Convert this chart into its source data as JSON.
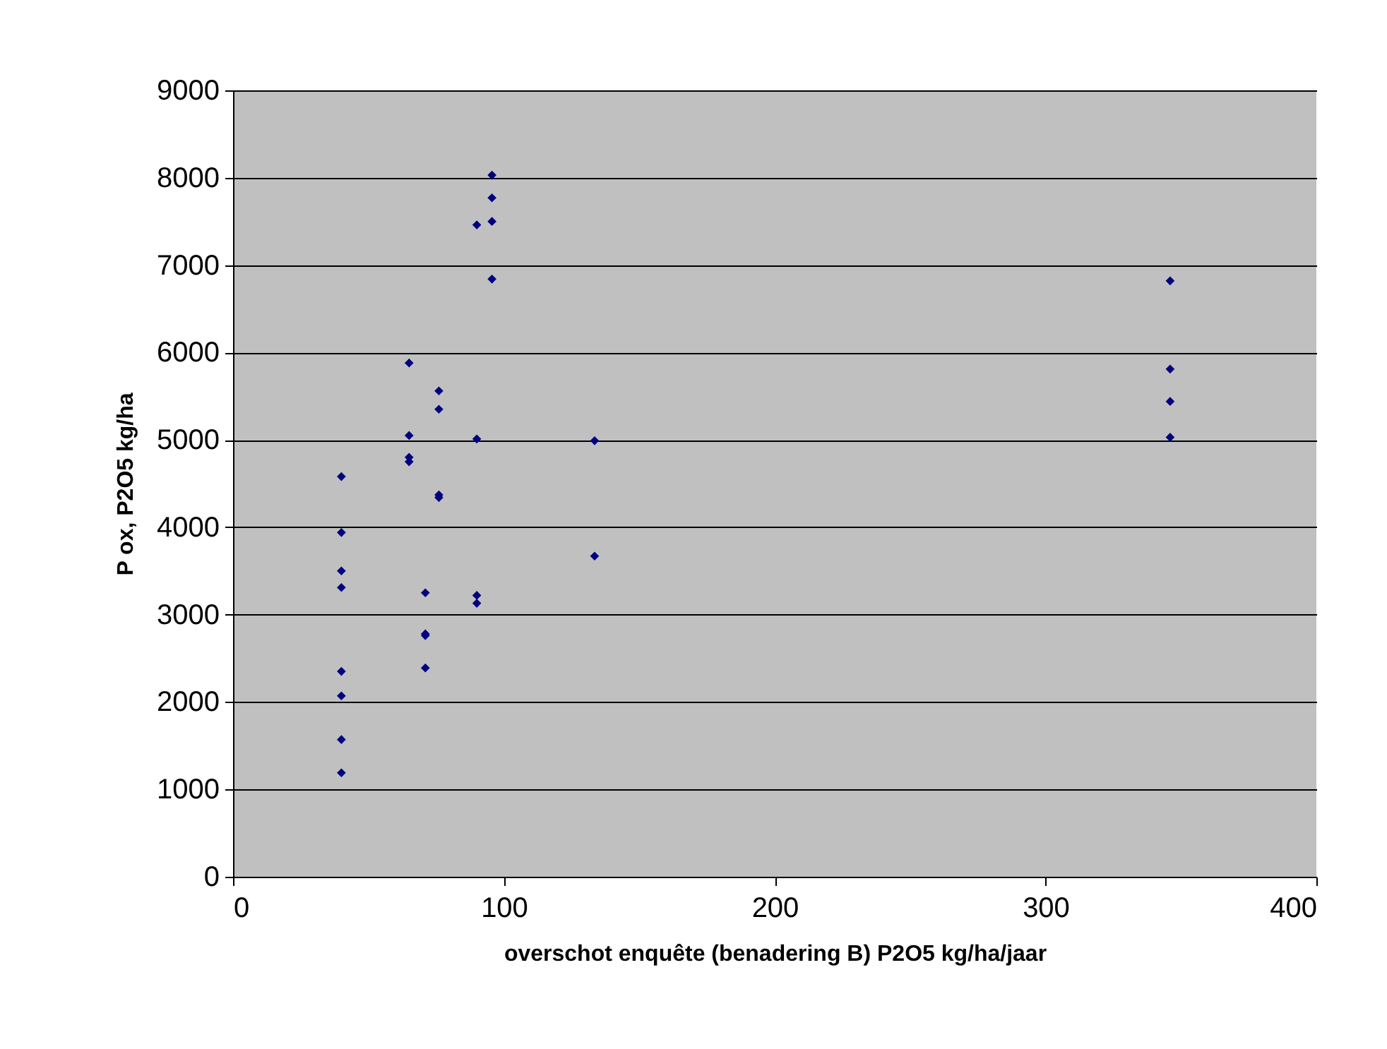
{
  "chart_data": {
    "type": "scatter",
    "xlabel": "overschot enquête (benadering B) P2O5 kg/ha/jaar",
    "ylabel": "P ox, P2O5 kg/ha",
    "x": [
      40,
      40,
      40,
      40,
      40,
      40,
      40,
      40,
      65,
      65,
      65,
      65,
      71,
      71,
      71,
      71,
      76,
      76,
      76,
      76,
      90,
      90,
      90,
      90,
      95.6,
      95.6,
      95.6,
      95.6,
      133.5,
      133.5,
      346,
      346,
      346,
      346
    ],
    "values": [
      4580,
      3940,
      3500,
      3310,
      2350,
      2070,
      1570,
      1190,
      5880,
      5050,
      4800,
      4750,
      3250,
      2780,
      2760,
      2390,
      5560,
      5350,
      4370,
      4340,
      7460,
      5010,
      3220,
      3130,
      8030,
      7770,
      7500,
      6840,
      4990,
      3670,
      6820,
      5810,
      5440,
      5030
    ],
    "color": "#000080",
    "marker": "diamond",
    "xlim": [
      0,
      400
    ],
    "xticks": [
      0,
      100,
      200,
      300,
      400
    ],
    "ylim": [
      0,
      9000
    ],
    "yticks": [
      0,
      1000,
      2000,
      3000,
      4000,
      5000,
      6000,
      7000,
      8000,
      9000
    ],
    "grid": "y"
  }
}
